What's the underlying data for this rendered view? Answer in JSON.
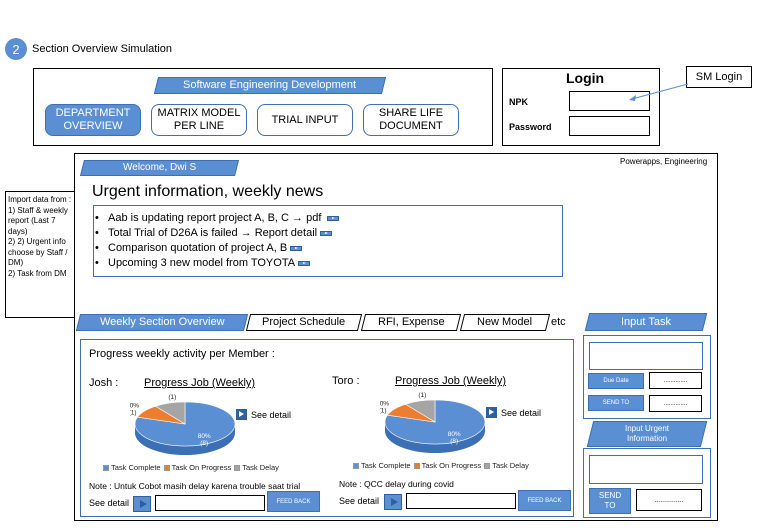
{
  "section": {
    "number": "2",
    "title": "Section Overview Simulation"
  },
  "colors": {
    "accent": "#5b8fd4",
    "accent_dark": "#3c6fb3",
    "orange": "#ed7d31",
    "gray": "#a5a5a5"
  },
  "top_nav": {
    "banner": "Software Engineering Development",
    "buttons": [
      "DEPARTMENT\nOVERVIEW",
      "MATRIX MODEL\nPER LINE",
      "TRIAL INPUT",
      "SHARE LIFE\nDOCUMENT"
    ]
  },
  "login": {
    "title": "Login",
    "npk_label": "NPK",
    "password_label": "Password",
    "callout": "SM Login"
  },
  "import_note": "Import data from :\n1) Staff & weekly report (Last 7 days)\n2) 2) Urgent info choose by Staff / DM)\n2) Task from DM",
  "main": {
    "welcome": "Welcome, Dwi S",
    "app_label": "Powerapps, Engineering",
    "headline": "Urgent information, weekly news",
    "news": [
      "Aab is updating report project A, B, C → pdf",
      "Total Trial of D26A is failed → Report detail",
      "Comparison quotation of project A, B",
      "Upcoming 3 new model from TOYOTA"
    ],
    "tabs": [
      "Weekly Section Overview",
      "Project Schedule",
      "RFI, Expense",
      "New Model"
    ],
    "tabs_etc": "etc",
    "progress_title": "Progress weekly activity per Member :",
    "members": [
      {
        "name": "Josh :",
        "chart_title": "Progress Job (Weekly)",
        "see_detail": "See detail",
        "note": "Note : Untuk Cobot masih delay karena trouble saat trial",
        "bottom_see_detail": "See detail",
        "feedback": "FEED BACK"
      },
      {
        "name": "Toro :",
        "chart_title": "Progress Job (Weekly)",
        "see_detail": "See detail",
        "note": "Note : QCC delay during covid",
        "bottom_see_detail": "See detail",
        "feedback": "FEED BACK"
      }
    ],
    "legend": [
      "Task Complete",
      "Task On Progress",
      "Task Delay"
    ]
  },
  "chart_data": [
    {
      "type": "pie",
      "title": "Progress Job (Weekly)",
      "categories": [
        "Task Complete",
        "Task On Progress",
        "Task Delay"
      ],
      "values": [
        80,
        10,
        10
      ],
      "labels": [
        "80%\n(8)",
        "10%\n(1)",
        "10%\n(1)"
      ]
    },
    {
      "type": "pie",
      "title": "Progress Job (Weekly)",
      "categories": [
        "Task Complete",
        "Task On Progress",
        "Task Delay"
      ],
      "values": [
        80,
        10,
        10
      ],
      "labels": [
        "80%\n(8)",
        "10%\n(1)",
        "10%\n(1)"
      ]
    }
  ],
  "sidebar": {
    "input_task": "Input Task",
    "due_date": "Due Date",
    "send_to": "SEND TO",
    "placeholder_dots": "..............",
    "input_urgent": "Input Urgent\nInformation",
    "send_to_bottom": "SEND\nTO",
    "placeholder_dots_bottom": "..............."
  }
}
